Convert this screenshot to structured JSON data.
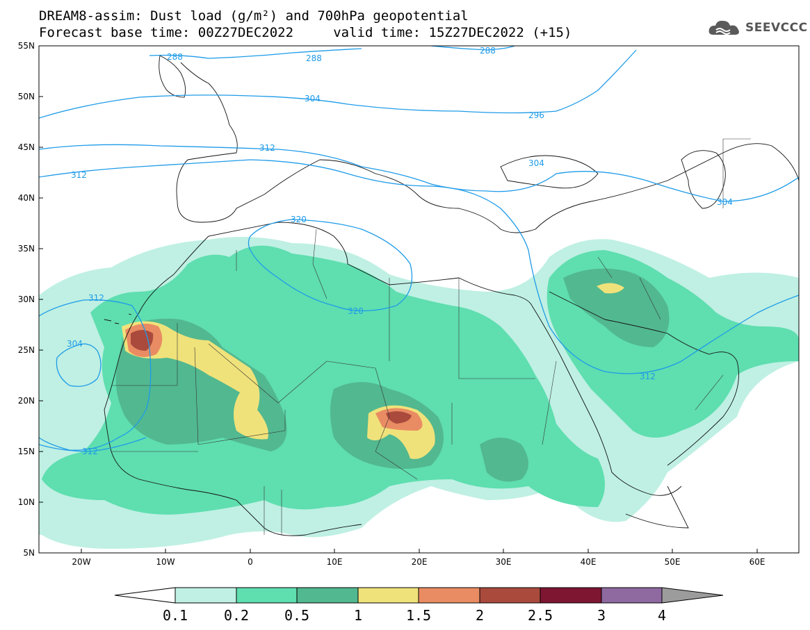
{
  "title": {
    "line1": "DREAM8-assim: Dust load (g/m²) and 700hPa geopotential",
    "line2": "Forecast base time: 00Z27DEC2022     valid time: 15Z27DEC2022 (+15)"
  },
  "logo": {
    "text": "SEEVCCC",
    "icon": "cloud-logo-icon"
  },
  "map": {
    "lat_labels": [
      "55N",
      "50N",
      "45N",
      "40N",
      "35N",
      "30N",
      "25N",
      "20N",
      "15N",
      "10N",
      "5N"
    ],
    "lon_labels": [
      "20W",
      "10W",
      "0",
      "10E",
      "20E",
      "30E",
      "40E",
      "50E",
      "60E"
    ],
    "contour_color": "#1e9be8",
    "contour_labels": [
      "288",
      "288",
      "288",
      "304",
      "296",
      "312",
      "312",
      "304",
      "304",
      "320",
      "312",
      "320",
      "304",
      "312",
      "312"
    ]
  },
  "colorbar": {
    "labels": [
      "0.1",
      "0.2",
      "0.5",
      "1",
      "1.5",
      "2",
      "2.5",
      "3",
      "4"
    ],
    "colors": [
      "#bff0e3",
      "#5fdeb0",
      "#52b890",
      "#f0e27a",
      "#e98c63",
      "#aa4a3d",
      "#7e1632",
      "#8e6aa0",
      "#9c9c9c"
    ]
  }
}
